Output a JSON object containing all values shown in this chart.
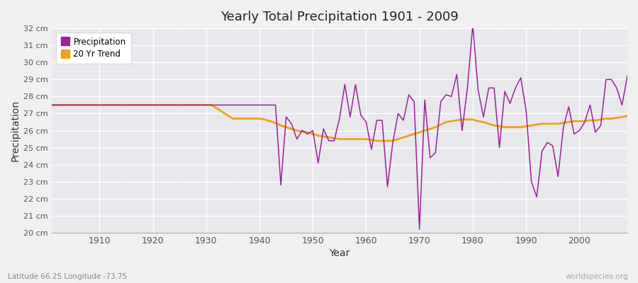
{
  "title": "Yearly Total Precipitation 1901 - 2009",
  "xlabel": "Year",
  "ylabel": "Precipitation",
  "subtitle": "Latitude 66.25 Longitude -73.75",
  "watermark": "worldspecies.org",
  "ylim": [
    20,
    32
  ],
  "ytick_values": [
    20,
    21,
    22,
    23,
    24,
    25,
    26,
    27,
    28,
    29,
    30,
    31,
    32
  ],
  "ytick_labels": [
    "20 cm",
    "21 cm",
    "22 cm",
    "23 cm",
    "24 cm",
    "25 cm",
    "26 cm",
    "27 cm",
    "28 cm",
    "29 cm",
    "30 cm",
    "31 cm",
    "32 cm"
  ],
  "outer_bg_color": "#f0f0f0",
  "plot_bg_color": "#e8e8ec",
  "precipitation_color": "#992299",
  "trend_color": "#f0a020",
  "legend_label_precip": "Precipitation",
  "legend_label_trend": "20 Yr Trend",
  "years": [
    1901,
    1902,
    1903,
    1904,
    1905,
    1906,
    1907,
    1908,
    1909,
    1910,
    1911,
    1912,
    1913,
    1914,
    1915,
    1916,
    1917,
    1918,
    1919,
    1920,
    1921,
    1922,
    1923,
    1924,
    1925,
    1926,
    1927,
    1928,
    1929,
    1930,
    1931,
    1932,
    1933,
    1934,
    1935,
    1936,
    1937,
    1938,
    1939,
    1940,
    1941,
    1942,
    1943,
    1944,
    1945,
    1946,
    1947,
    1948,
    1949,
    1950,
    1951,
    1952,
    1953,
    1954,
    1955,
    1956,
    1957,
    1958,
    1959,
    1960,
    1961,
    1962,
    1963,
    1964,
    1965,
    1966,
    1967,
    1968,
    1969,
    1970,
    1971,
    1972,
    1973,
    1974,
    1975,
    1976,
    1977,
    1978,
    1979,
    1980,
    1981,
    1982,
    1983,
    1984,
    1985,
    1986,
    1987,
    1988,
    1989,
    1990,
    1991,
    1992,
    1993,
    1994,
    1995,
    1996,
    1997,
    1998,
    1999,
    2000,
    2001,
    2002,
    2003,
    2004,
    2005,
    2006,
    2007,
    2008,
    2009
  ],
  "precipitation": [
    27.5,
    27.5,
    27.5,
    27.5,
    27.5,
    27.5,
    27.5,
    27.5,
    27.5,
    27.5,
    27.5,
    27.5,
    27.5,
    27.5,
    27.5,
    27.5,
    27.5,
    27.5,
    27.5,
    27.5,
    27.5,
    27.5,
    27.5,
    27.5,
    27.5,
    27.5,
    27.5,
    27.5,
    27.5,
    27.5,
    27.5,
    27.5,
    27.5,
    27.5,
    27.5,
    27.5,
    27.5,
    27.5,
    27.5,
    27.5,
    27.5,
    27.5,
    27.5,
    22.8,
    26.8,
    26.4,
    25.5,
    26.0,
    25.8,
    26.0,
    24.1,
    26.1,
    25.4,
    25.4,
    26.7,
    28.7,
    26.8,
    28.7,
    26.9,
    26.5,
    24.9,
    26.6,
    26.6,
    22.7,
    25.3,
    27.0,
    26.6,
    28.1,
    27.7,
    20.2,
    27.8,
    24.4,
    24.7,
    27.7,
    28.1,
    28.0,
    29.3,
    26.0,
    28.5,
    32.2,
    28.4,
    26.8,
    28.5,
    28.5,
    25.0,
    28.3,
    27.6,
    28.5,
    29.1,
    27.2,
    23.0,
    22.1,
    24.8,
    25.3,
    25.1,
    23.3,
    26.2,
    27.4,
    25.8,
    26.0,
    26.5,
    27.5,
    25.9,
    26.3,
    29.0,
    29.0,
    28.5,
    27.5,
    29.2
  ],
  "trend": [
    27.5,
    27.5,
    27.5,
    27.5,
    27.5,
    27.5,
    27.5,
    27.5,
    27.5,
    27.5,
    27.5,
    27.5,
    27.5,
    27.5,
    27.5,
    27.5,
    27.5,
    27.5,
    27.5,
    27.5,
    27.5,
    27.5,
    27.5,
    27.5,
    27.5,
    27.5,
    27.5,
    27.5,
    27.5,
    27.5,
    27.5,
    27.3,
    27.1,
    26.9,
    26.7,
    26.7,
    26.7,
    26.7,
    26.7,
    26.7,
    26.65,
    26.55,
    26.45,
    26.3,
    26.2,
    26.1,
    26.0,
    25.95,
    25.9,
    25.8,
    25.7,
    25.65,
    25.6,
    25.55,
    25.5,
    25.5,
    25.5,
    25.5,
    25.5,
    25.5,
    25.45,
    25.4,
    25.4,
    25.4,
    25.4,
    25.5,
    25.6,
    25.7,
    25.8,
    25.9,
    26.0,
    26.1,
    26.2,
    26.35,
    26.5,
    26.55,
    26.6,
    26.65,
    26.65,
    26.65,
    26.55,
    26.5,
    26.4,
    26.3,
    26.25,
    26.2,
    26.2,
    26.2,
    26.2,
    26.25,
    26.3,
    26.35,
    26.4,
    26.4,
    26.4,
    26.4,
    26.45,
    26.5,
    26.55,
    26.55,
    26.55,
    26.6,
    26.6,
    26.65,
    26.7,
    26.7,
    26.75,
    26.8,
    26.85
  ]
}
